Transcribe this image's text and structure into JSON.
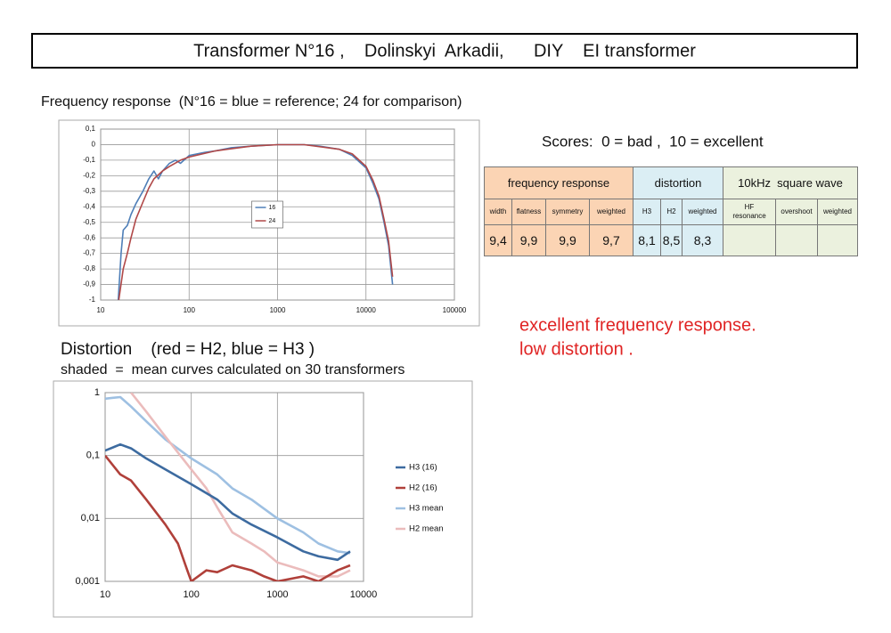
{
  "header": {
    "title": "Transformer N°16 ,    Dolinskyi  Arkadii,      DIY    EI transformer"
  },
  "chart_data": [
    {
      "type": "line",
      "title": "Frequency response  (N°16 = blue = reference; 24 for comparison)",
      "xscale": "log",
      "xlim": [
        10,
        100000
      ],
      "xticks": [
        10,
        100,
        1000,
        10000,
        100000
      ],
      "ylim": [
        -1,
        0.1
      ],
      "yticks": [
        {
          "value": 0.1,
          "label": "0,1"
        },
        0,
        {
          "value": -0.1,
          "label": "-0,1"
        },
        {
          "value": -0.2,
          "label": "-0,2"
        },
        {
          "value": -0.3,
          "label": "-0,3"
        },
        {
          "value": -0.4,
          "label": "-0,4"
        },
        {
          "value": -0.5,
          "label": "-0,5"
        },
        {
          "value": -0.6,
          "label": "-0,6"
        },
        {
          "value": -0.7,
          "label": "-0,7"
        },
        {
          "value": -0.8,
          "label": "-0,8"
        },
        {
          "value": -0.9,
          "label": "-0,9"
        },
        {
          "value": -1,
          "label": "-1"
        }
      ],
      "grid": true,
      "legend": "center",
      "series": [
        {
          "name": "16",
          "color": "#4f7fb8",
          "x": [
            15.8,
            17,
            18,
            20,
            22,
            25,
            30,
            35,
            40,
            45,
            50,
            60,
            70,
            80,
            100,
            150,
            200,
            300,
            500,
            1000,
            2000,
            3000,
            5000,
            7000,
            10000,
            12000,
            14000,
            16000,
            18000,
            20000
          ],
          "values": [
            -1,
            -0.7,
            -0.55,
            -0.52,
            -0.45,
            -0.38,
            -0.3,
            -0.22,
            -0.17,
            -0.22,
            -0.17,
            -0.12,
            -0.1,
            -0.12,
            -0.07,
            -0.05,
            -0.04,
            -0.02,
            -0.01,
            0,
            0,
            -0.01,
            -0.03,
            -0.07,
            -0.15,
            -0.25,
            -0.35,
            -0.5,
            -0.65,
            -0.9
          ]
        },
        {
          "name": "24",
          "color": "#b04848",
          "x": [
            16,
            18,
            20,
            22,
            25,
            30,
            35,
            40,
            50,
            60,
            80,
            100,
            200,
            500,
            1000,
            2000,
            5000,
            7000,
            10000,
            12000,
            14000,
            16000,
            18000,
            20000
          ],
          "values": [
            -1,
            -0.8,
            -0.7,
            -0.6,
            -0.48,
            -0.37,
            -0.28,
            -0.22,
            -0.17,
            -0.14,
            -0.1,
            -0.08,
            -0.04,
            -0.01,
            0,
            0,
            -0.03,
            -0.06,
            -0.14,
            -0.23,
            -0.33,
            -0.48,
            -0.62,
            -0.85
          ]
        }
      ]
    },
    {
      "type": "line",
      "title": "Distortion    (red = H2, blue = H3 )",
      "subtitle": "shaded  =  mean curves calculated on 30 transformers",
      "xscale": "log",
      "yscale": "log",
      "xlim": [
        10,
        10000
      ],
      "xticks": [
        10,
        100,
        1000,
        10000
      ],
      "ylim": [
        0.001,
        1
      ],
      "yticks": [
        1,
        {
          "value": 0.1,
          "label": "0,1"
        },
        {
          "value": 0.01,
          "label": "0,01"
        },
        {
          "value": 0.001,
          "label": "0,001"
        }
      ],
      "grid": true,
      "legend": "right",
      "series": [
        {
          "name": "H3 mean",
          "color": "#9ec0e2",
          "x": [
            10,
            15,
            20,
            30,
            50,
            100,
            200,
            300,
            500,
            1000,
            2000,
            3000,
            5000,
            7000
          ],
          "values": [
            0.8,
            0.85,
            0.6,
            0.35,
            0.18,
            0.09,
            0.05,
            0.03,
            0.02,
            0.01,
            0.006,
            0.004,
            0.003,
            0.0028
          ]
        },
        {
          "name": "H2 mean",
          "color": "#ebbcbc",
          "x": [
            20,
            30,
            50,
            100,
            150,
            200,
            300,
            500,
            700,
            1000,
            2000,
            3000,
            5000,
            7000
          ],
          "values": [
            1,
            0.5,
            0.2,
            0.06,
            0.03,
            0.015,
            0.006,
            0.004,
            0.003,
            0.002,
            0.0015,
            0.0012,
            0.0012,
            0.0015
          ]
        },
        {
          "name": "H3 (16)",
          "color": "#3d6ba0",
          "x": [
            10,
            15,
            20,
            30,
            50,
            100,
            200,
            300,
            500,
            1000,
            2000,
            3000,
            5000,
            7000
          ],
          "values": [
            0.12,
            0.15,
            0.13,
            0.09,
            0.06,
            0.035,
            0.02,
            0.012,
            0.008,
            0.005,
            0.003,
            0.0025,
            0.0022,
            0.003
          ]
        },
        {
          "name": "H2 (16)",
          "color": "#b0403a",
          "x": [
            10,
            15,
            20,
            30,
            50,
            70,
            90,
            100,
            150,
            200,
            300,
            500,
            700,
            1000,
            2000,
            3000,
            5000,
            7000
          ],
          "values": [
            0.1,
            0.05,
            0.04,
            0.02,
            0.008,
            0.004,
            0.0015,
            0.001,
            0.0015,
            0.0014,
            0.0018,
            0.0015,
            0.0012,
            0.001,
            0.0012,
            0.001,
            0.0015,
            0.0018
          ]
        }
      ],
      "legend_order": [
        "H3 (16)",
        "H2 (16)",
        "H3 mean",
        "H2 mean"
      ]
    }
  ],
  "scores": {
    "title": "Scores:  0 = bad ,  10 = excellent",
    "groups": [
      "frequency response",
      "distortion",
      "10kHz  square wave"
    ],
    "columns": [
      "width",
      "flatness",
      "symmetry",
      "weighted",
      "H3",
      "H2",
      "weighted",
      "HF resonance",
      "overshoot",
      "weighted"
    ],
    "values": [
      "9,4",
      "9,9",
      "9,9",
      "9,7",
      "8,1",
      "8,5",
      "8,3"
    ]
  },
  "notes": [
    "excellent frequency response.",
    "low distortion ."
  ]
}
